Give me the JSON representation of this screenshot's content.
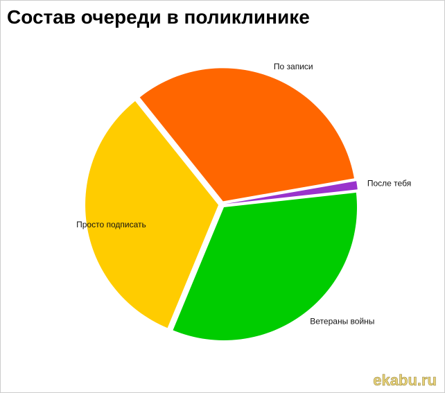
{
  "chart_data": {
    "type": "pie",
    "title": "Состав очереди в поликлинике",
    "categories": [
      "По записи",
      "После тебя",
      "Ветераны войны",
      "Просто подписать"
    ],
    "values": [
      33,
      1,
      33,
      33
    ],
    "colors": [
      "#ff6600",
      "#9933cc",
      "#00cc00",
      "#ffcc00"
    ]
  },
  "watermark": "ekabu.ru"
}
